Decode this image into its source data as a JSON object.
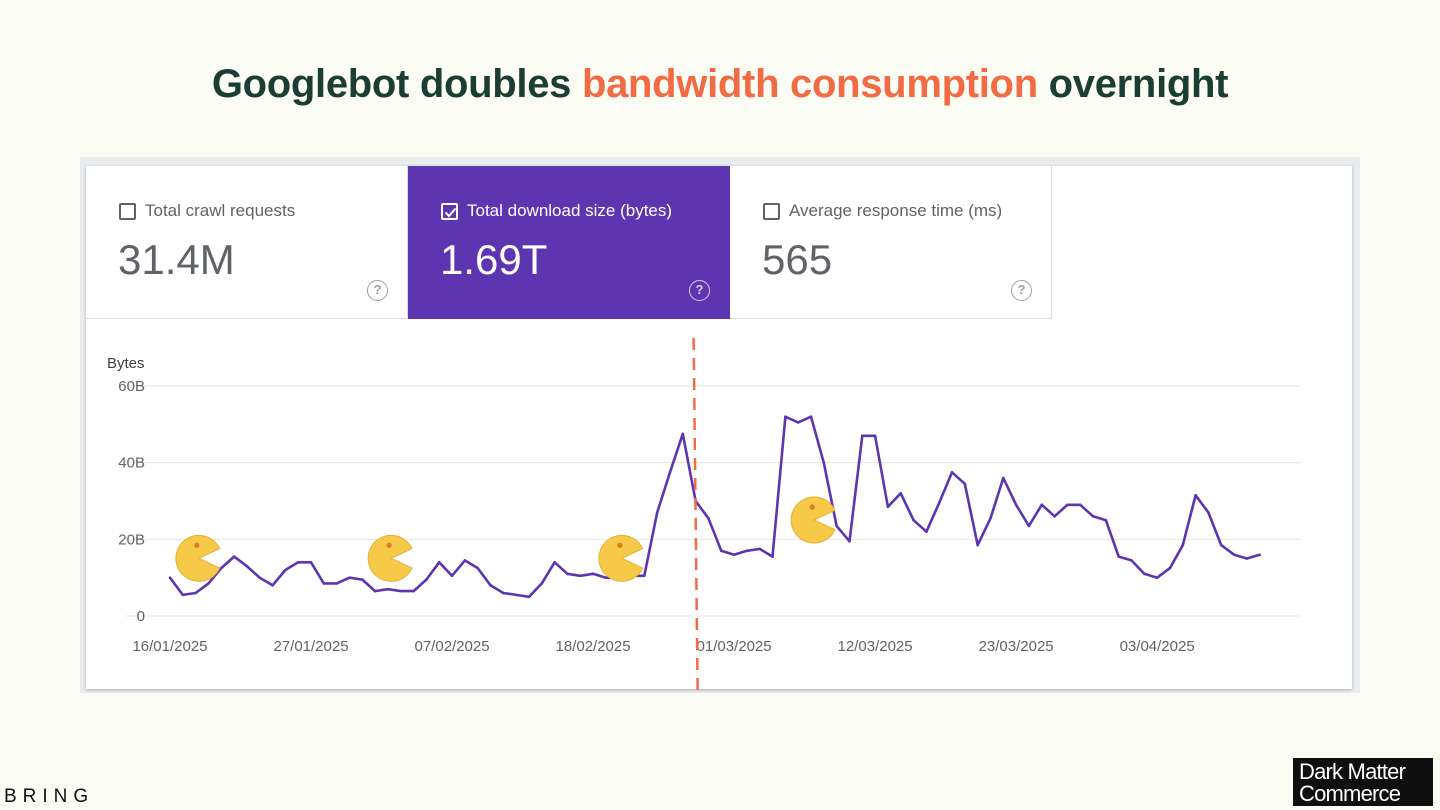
{
  "headline": {
    "part1": "Googlebot doubles ",
    "part2": "bandwidth consumption",
    "part3": " overnight",
    "dark_color": "#1b3d33",
    "accent_color": "#f26b45"
  },
  "metrics": [
    {
      "label": "Total crawl requests",
      "value": "31.4M",
      "checked": false
    },
    {
      "label": "Total download size (bytes)",
      "value": "1.69T",
      "checked": true
    },
    {
      "label": "Average response time (ms)",
      "value": "565",
      "checked": false
    }
  ],
  "help_glyph": "?",
  "chart_data": {
    "type": "line",
    "ylabel": "Bytes",
    "y_ticks": [
      "0",
      "20B",
      "40B",
      "60B"
    ],
    "ylim": [
      0,
      60
    ],
    "x_tick_labels": [
      "16/01/2025",
      "27/01/2025",
      "07/02/2025",
      "18/02/2025",
      "01/03/2025",
      "12/03/2025",
      "23/03/2025",
      "03/04/2025"
    ],
    "x_start_date": "2025-01-16",
    "series_color": "#5e35b1",
    "series": [
      {
        "values": [
          10,
          5.5,
          6,
          8.5,
          12.5,
          15.5,
          13,
          10,
          8,
          12,
          14,
          14,
          8.5,
          8.5,
          10,
          9.5,
          6.5,
          7,
          6.5,
          6.5,
          9.5,
          14,
          10.5,
          14.5,
          12.5,
          8,
          6,
          5.5,
          5,
          8.5,
          14,
          11,
          10.5,
          11,
          10,
          10,
          10.5,
          10.5,
          27,
          37.5,
          47.5,
          30,
          25.5,
          17,
          16,
          17,
          17.5,
          15.5,
          52,
          50.5,
          52,
          40,
          23.5,
          19.5,
          47,
          47,
          28.5,
          32,
          25,
          22,
          29.5,
          37.5,
          34.5,
          18.5,
          25.5,
          36,
          29,
          23.5,
          29,
          26,
          29,
          29,
          26,
          25,
          15.5,
          14.5,
          11,
          10,
          12.5,
          18.5,
          31.5,
          27,
          18.5,
          16,
          15,
          16
        ]
      }
    ],
    "annotation": {
      "type": "vertical-dashed-line",
      "color": "#f26b45",
      "date": "2025-02-26"
    },
    "markers": [
      {
        "name": "pacman",
        "date": "2025-01-17",
        "value": 14
      },
      {
        "name": "pacman",
        "date": "2025-02-01",
        "value": 14
      },
      {
        "name": "pacman",
        "date": "2025-02-19",
        "value": 14
      },
      {
        "name": "pacman",
        "date": "2025-03-06",
        "value": 24
      }
    ],
    "grid": true,
    "gridline_color": "#e6e6e6"
  },
  "footer": {
    "left_brand": "BRING",
    "right_logo_line1": "Dark Matter",
    "right_logo_line2": "Commerce"
  }
}
